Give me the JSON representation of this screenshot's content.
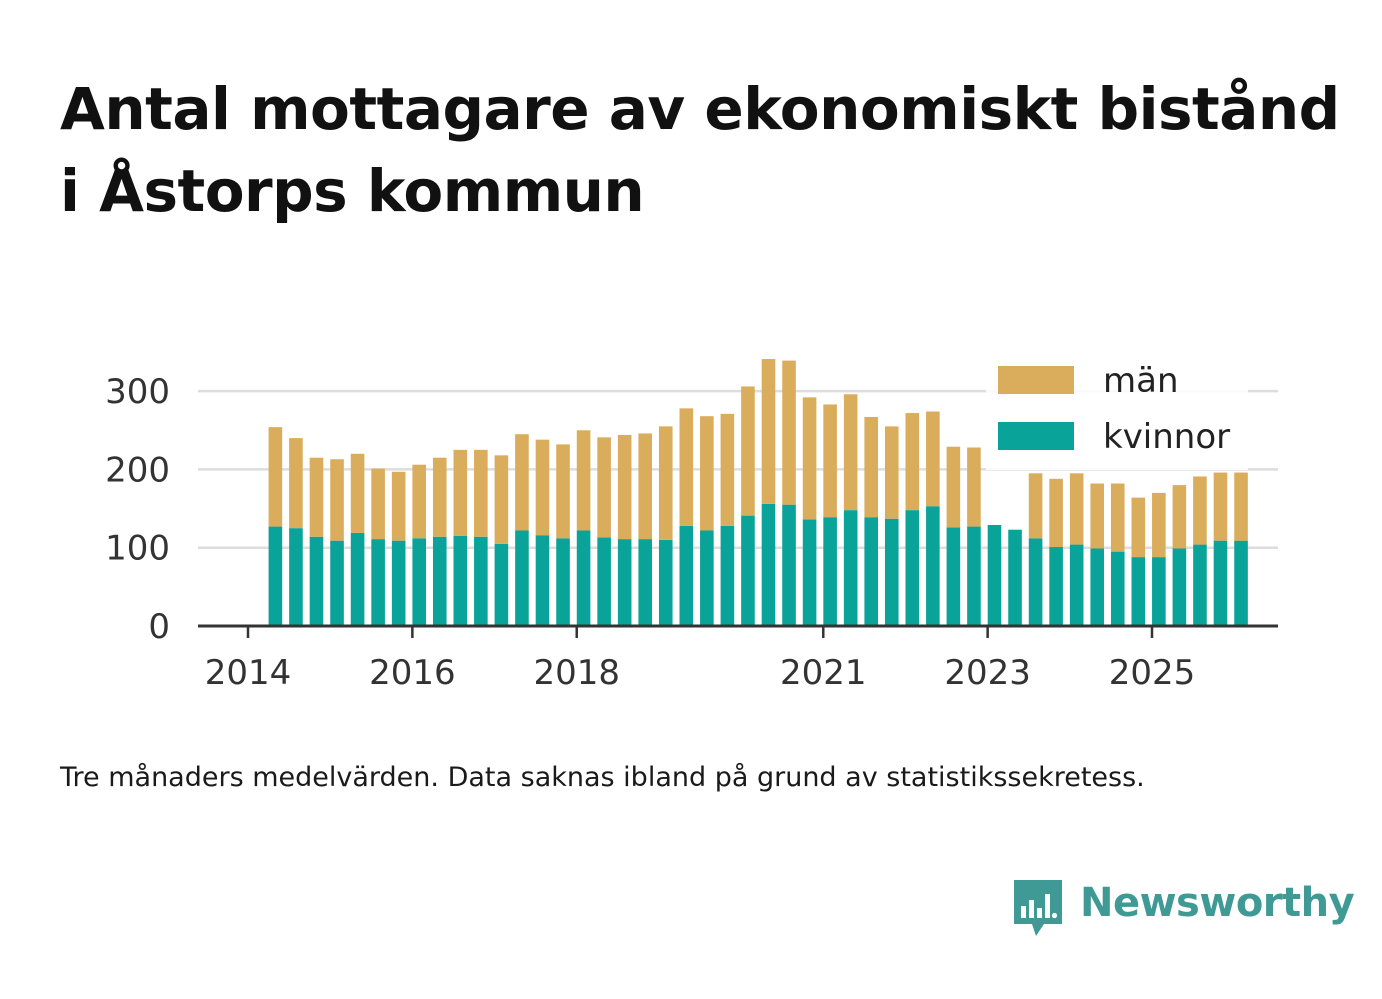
{
  "title": "Antal mottagare av ekonomiskt bistånd i Åstorps kommun",
  "note": "Tre månaders medelvärden. Data saknas ibland på grund av statistikssekretess.",
  "brand": {
    "name": "Newsworthy",
    "icon": "chart-speech-bubble-icon",
    "color": "#3f9a95"
  },
  "chart_data": {
    "type": "bar",
    "stacked": true,
    "title": "",
    "xlabel": "",
    "ylabel": "",
    "ylim": [
      0,
      350
    ],
    "yticks": [
      0,
      100,
      200,
      300
    ],
    "grid": true,
    "legend": "top-right",
    "x_start": "2014-01",
    "x_end": "2026-06",
    "x_ticks": [
      {
        "label": "2014",
        "date": "2014-01"
      },
      {
        "label": "2016",
        "date": "2016-01"
      },
      {
        "label": "2018",
        "date": "2018-01"
      },
      {
        "label": "2021",
        "date": "2021-01"
      },
      {
        "label": "2023",
        "date": "2023-01"
      },
      {
        "label": "2025",
        "date": "2025-01"
      }
    ],
    "categories": [
      "2014-Q2",
      "2014-Q3",
      "2014-Q4",
      "2015-Q1",
      "2015-Q2",
      "2015-Q3",
      "2015-Q4",
      "2016-Q1",
      "2016-Q2",
      "2016-Q3",
      "2016-Q4",
      "2017-Q1",
      "2017-Q2",
      "2017-Q3",
      "2017-Q4",
      "2018-Q1",
      "2018-Q2",
      "2018-Q3",
      "2018-Q4",
      "2019-Q1",
      "2019-Q2",
      "2019-Q3",
      "2019-Q4",
      "2020-Q1",
      "2020-Q2",
      "2020-Q3",
      "2020-Q4",
      "2021-Q1",
      "2021-Q2",
      "2021-Q3",
      "2021-Q4",
      "2022-Q1",
      "2022-Q2",
      "2022-Q3",
      "2022-Q4",
      "2023-Q1",
      "2023-Q2",
      "2023-Q3",
      "2023-Q4",
      "2024-Q1",
      "2024-Q2",
      "2024-Q3",
      "2024-Q4",
      "2025-Q1",
      "2025-Q2",
      "2025-Q3",
      "2025-Q4",
      "2026-Q1"
    ],
    "series": [
      {
        "name": "kvinnor",
        "color": "#0aa39a",
        "values": [
          127,
          125,
          114,
          109,
          119,
          111,
          109,
          112,
          114,
          115,
          114,
          105,
          122,
          116,
          112,
          122,
          113,
          111,
          111,
          110,
          128,
          122,
          128,
          141,
          156,
          155,
          136,
          139,
          148,
          139,
          137,
          148,
          153,
          126,
          127,
          129,
          123,
          112,
          101,
          104,
          99,
          95,
          88,
          88,
          99,
          104,
          109,
          109
        ]
      },
      {
        "name": "män",
        "color": "#d9ad5b",
        "values": [
          127,
          115,
          101,
          104,
          101,
          90,
          88,
          94,
          101,
          110,
          111,
          113,
          123,
          122,
          120,
          128,
          128,
          133,
          135,
          145,
          150,
          146,
          143,
          165,
          185,
          184,
          156,
          144,
          148,
          128,
          118,
          124,
          121,
          103,
          101,
          0,
          0,
          83,
          87,
          91,
          83,
          87,
          76,
          82,
          81,
          87,
          87,
          87
        ]
      }
    ]
  }
}
